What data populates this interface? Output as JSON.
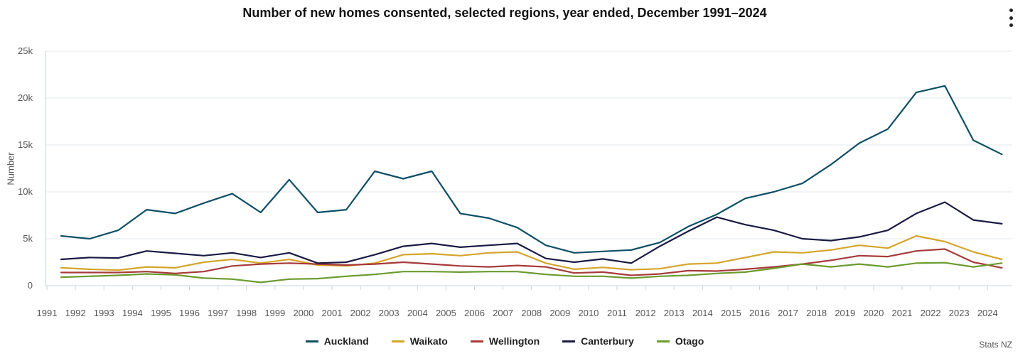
{
  "menu_icon": "more-vert-icon",
  "credit": "Stats NZ",
  "chart_data": {
    "type": "line",
    "title": "Number of new homes consented, selected regions, year ended, December 1991–2024",
    "ylabel": "Number",
    "xlabel": "",
    "ylim": [
      0,
      25000
    ],
    "yticks": [
      {
        "value": 0,
        "label": "0"
      },
      {
        "value": 5000,
        "label": "5k"
      },
      {
        "value": 10000,
        "label": "10k"
      },
      {
        "value": 15000,
        "label": "15k"
      },
      {
        "value": 20000,
        "label": "20k"
      },
      {
        "value": 25000,
        "label": "25k"
      }
    ],
    "xtick_labels": [
      "1991",
      "1992",
      "1993",
      "1994",
      "1995",
      "1996",
      "1997",
      "1998",
      "1999",
      "2000",
      "2001",
      "2002",
      "2003",
      "2004",
      "2005",
      "2006",
      "2007",
      "2008",
      "2009",
      "2010",
      "2011",
      "2012",
      "2013",
      "2014",
      "2015",
      "2016",
      "2017",
      "2018",
      "2019",
      "2020",
      "2021",
      "2022",
      "2023",
      "2024"
    ],
    "grid": true,
    "legend_position": "bottom-center",
    "x": [
      1991,
      1992,
      1993,
      1994,
      1995,
      1996,
      1997,
      1998,
      1999,
      2000,
      2001,
      2002,
      2003,
      2004,
      2005,
      2006,
      2007,
      2008,
      2009,
      2010,
      2011,
      2012,
      2013,
      2014,
      2015,
      2016,
      2017,
      2018,
      2019,
      2020,
      2021,
      2022,
      2023,
      2024
    ],
    "series": [
      {
        "name": "Auckland",
        "color": "#0e4f66",
        "values": [
          5300,
          5000,
          5900,
          8100,
          7700,
          8800,
          9800,
          7800,
          11300,
          7800,
          8100,
          12200,
          11400,
          12200,
          7700,
          7200,
          6200,
          4300,
          3500,
          3650,
          3800,
          4600,
          6300,
          7600,
          9300,
          10000,
          10900,
          12900,
          15200,
          16700,
          20600,
          21300,
          15500,
          14000
        ]
      },
      {
        "name": "Waikato",
        "color": "#d4a52a",
        "values": [
          1900,
          1750,
          1650,
          2000,
          1900,
          2500,
          2800,
          2400,
          2800,
          2200,
          2100,
          2400,
          3300,
          3400,
          3200,
          3500,
          3600,
          2400,
          1750,
          1950,
          1700,
          1800,
          2300,
          2400,
          3000,
          3600,
          3500,
          3800,
          4300,
          4000,
          5300,
          4700,
          3600,
          2800
        ]
      },
      {
        "name": "Wellington",
        "color": "#a83a3a",
        "values": [
          1400,
          1400,
          1400,
          1500,
          1300,
          1500,
          2100,
          2300,
          2400,
          2300,
          2200,
          2300,
          2500,
          2300,
          2100,
          2000,
          2150,
          2000,
          1350,
          1450,
          1100,
          1250,
          1600,
          1550,
          1750,
          2000,
          2300,
          2700,
          3200,
          3100,
          3700,
          3900,
          2500,
          1900
        ]
      },
      {
        "name": "Canterbury",
        "color": "#1a1a44",
        "values": [
          2800,
          3000,
          2950,
          3700,
          3450,
          3200,
          3500,
          3000,
          3500,
          2400,
          2500,
          3300,
          4200,
          4500,
          4100,
          4300,
          4500,
          2900,
          2500,
          2850,
          2400,
          4200,
          5800,
          7300,
          6500,
          5900,
          5000,
          4800,
          5200,
          5900,
          7700,
          8900,
          7000,
          6600
        ]
      },
      {
        "name": "Otago",
        "color": "#6a9b2f",
        "values": [
          900,
          1000,
          1100,
          1250,
          1150,
          800,
          700,
          350,
          700,
          750,
          1000,
          1200,
          1500,
          1500,
          1450,
          1500,
          1500,
          1200,
          1000,
          1000,
          800,
          1000,
          1100,
          1300,
          1450,
          1850,
          2300,
          2000,
          2300,
          2000,
          2400,
          2450,
          2000,
          2400
        ]
      }
    ]
  }
}
